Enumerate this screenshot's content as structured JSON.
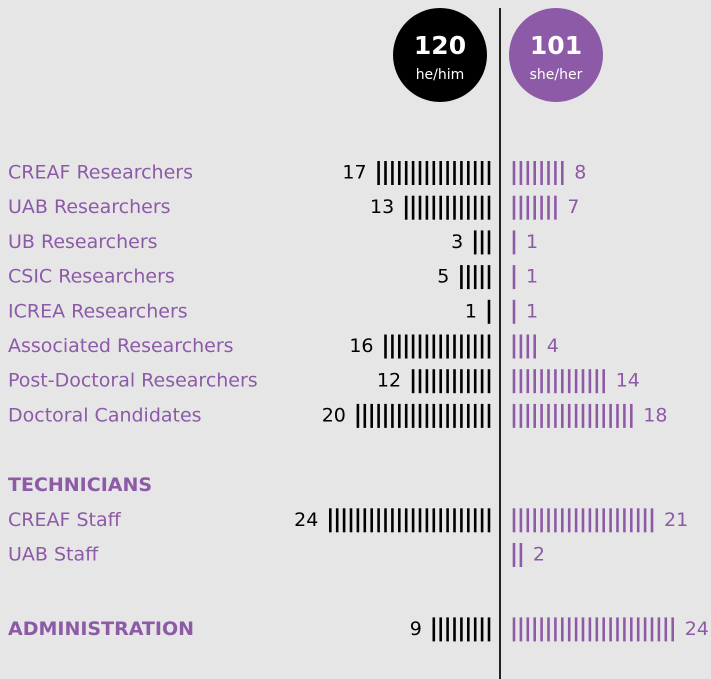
{
  "chart_data": {
    "type": "pictogram",
    "categories": [
      "CREAF  Researchers",
      "UAB  Researchers",
      "UB Researchers",
      "CSIC Researchers",
      "ICREA Researchers",
      "Associated Researchers",
      "Post-Doctoral Researchers",
      "Doctoral Candidates",
      "TECHNICIANS",
      "CREAF Staff",
      "UAB Staff",
      "ADMINISTRATION"
    ],
    "bold_rows": [
      8,
      11
    ],
    "series": [
      {
        "name": "he/him",
        "total": 120,
        "color": "#000000",
        "values": [
          17,
          13,
          3,
          5,
          1,
          16,
          12,
          20,
          null,
          24,
          null,
          9
        ]
      },
      {
        "name": "she/her",
        "total": 101,
        "color": "#8d5aa7",
        "values": [
          8,
          7,
          1,
          1,
          1,
          4,
          14,
          18,
          null,
          21,
          2,
          24
        ]
      }
    ]
  }
}
